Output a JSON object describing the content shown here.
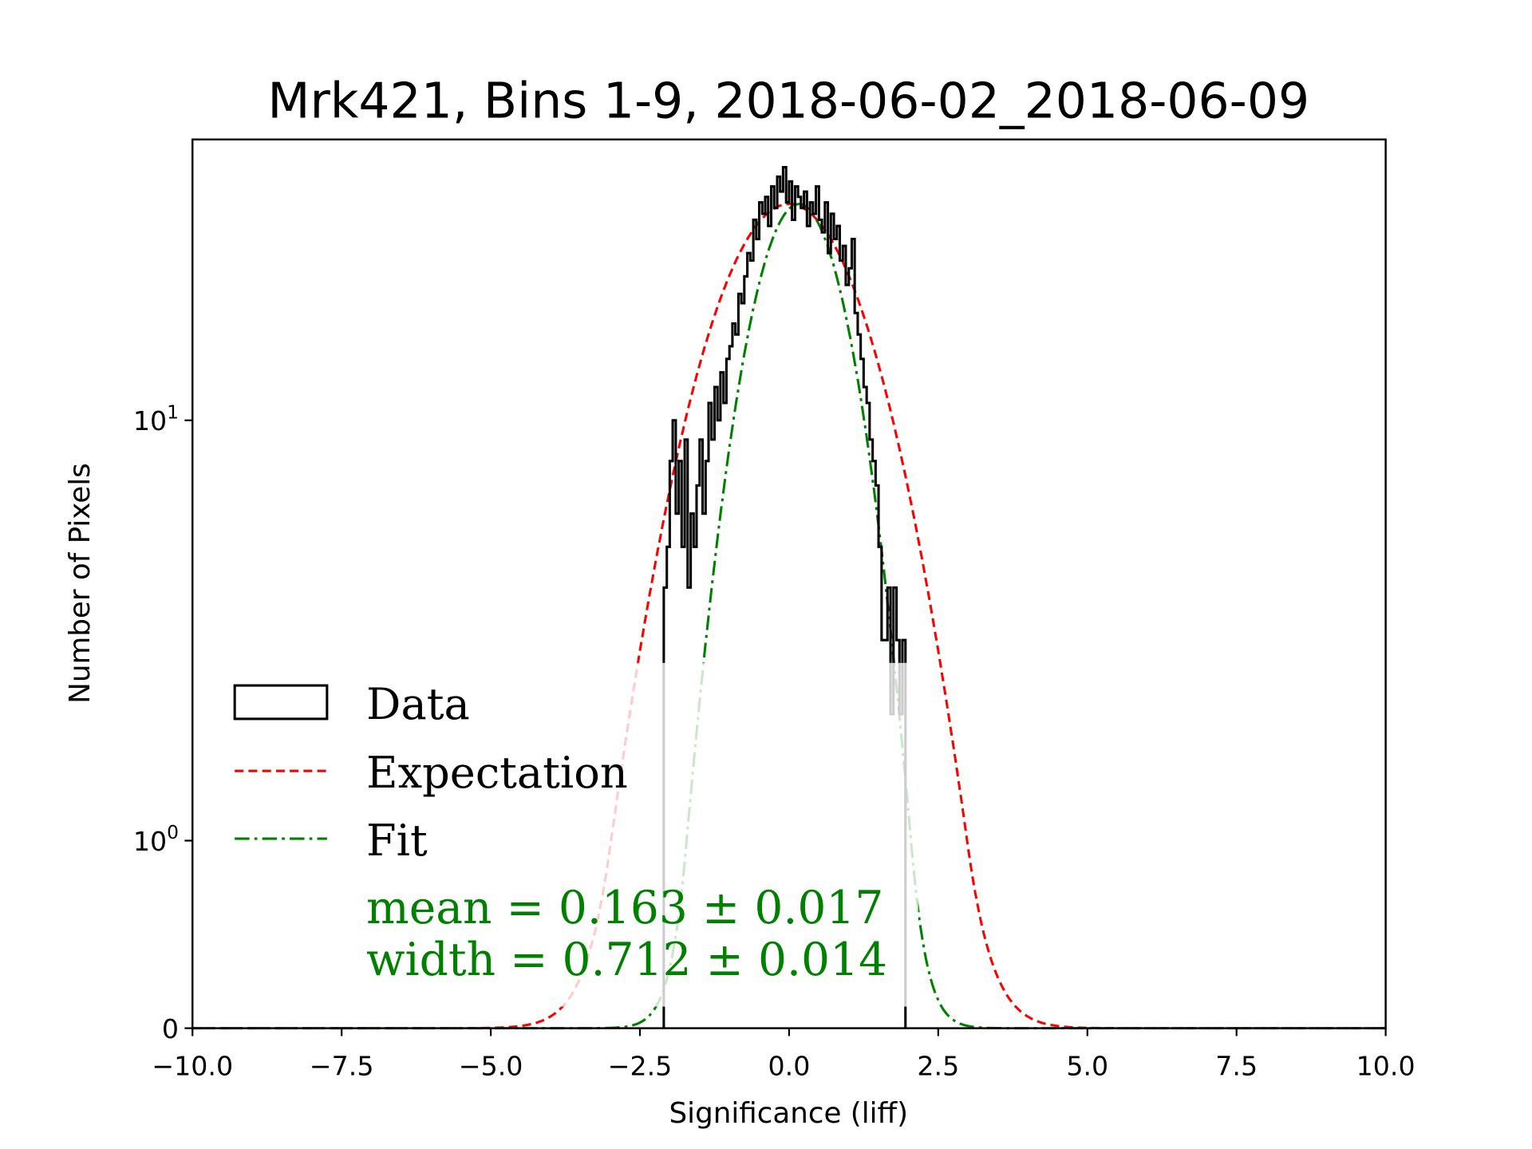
{
  "chart_data": {
    "type": "histogram",
    "title": "Mrk421, Bins 1-9, 2018-06-02_2018-06-09",
    "xlabel": "Significance (liff)",
    "ylabel": "Number of Pixels",
    "xlim": [
      -10,
      10
    ],
    "ylim": [
      0,
      46.6
    ],
    "yscale": "symlog",
    "ylinthresh": 1,
    "xticks": [
      -10,
      -7.5,
      -5,
      -2.5,
      0,
      2.5,
      5,
      7.5,
      10
    ],
    "xtick_labels": [
      "−10.0",
      "−7.5",
      "−5.0",
      "−2.5",
      "0.0",
      "2.5",
      "5.0",
      "7.5",
      "10.0"
    ],
    "yticks": [
      {
        "value": 0,
        "base": "0",
        "exp": ""
      },
      {
        "value": 1,
        "base": "10",
        "exp": "0"
      },
      {
        "value": 10,
        "base": "10",
        "exp": "1"
      }
    ],
    "grid": false,
    "legend_position": "lower-left",
    "histogram": {
      "name": "Data",
      "color": "#000000",
      "bin_start": -2.1,
      "bin_width": 0.05,
      "counts": [
        4,
        5,
        8,
        10,
        6,
        8,
        5,
        9,
        4,
        6,
        5,
        7,
        9,
        6,
        8,
        11,
        9,
        12,
        10,
        13,
        11,
        14,
        15,
        17,
        16,
        20,
        19,
        22,
        25,
        24,
        30,
        27,
        33,
        31,
        34,
        29,
        36,
        32,
        38,
        35,
        40,
        33,
        37,
        30,
        36,
        34,
        32,
        35,
        29,
        33,
        31,
        36,
        30,
        28,
        33,
        25,
        31,
        27,
        29,
        24,
        26,
        21,
        23,
        27,
        18,
        16,
        14,
        12,
        11,
        9,
        8,
        7,
        5,
        3,
        3,
        4,
        2,
        4,
        3,
        2,
        3
      ]
    },
    "series": [
      {
        "name": "Expectation",
        "type": "gaussian",
        "amplitude": 32.7,
        "mean": 0.0,
        "sigma": 1.13,
        "color": "#ff0000",
        "style": "dashed"
      },
      {
        "name": "Fit",
        "type": "gaussian",
        "amplitude": 32.7,
        "mean": 0.163,
        "sigma": 0.712,
        "color": "#008000",
        "style": "dashdot"
      }
    ],
    "legend": [
      "Data",
      "Expectation",
      "Fit"
    ],
    "annotations": {
      "mean": "mean = 0.163 ± 0.017",
      "width": "width = 0.712 ± 0.014",
      "color": "#008000"
    }
  }
}
